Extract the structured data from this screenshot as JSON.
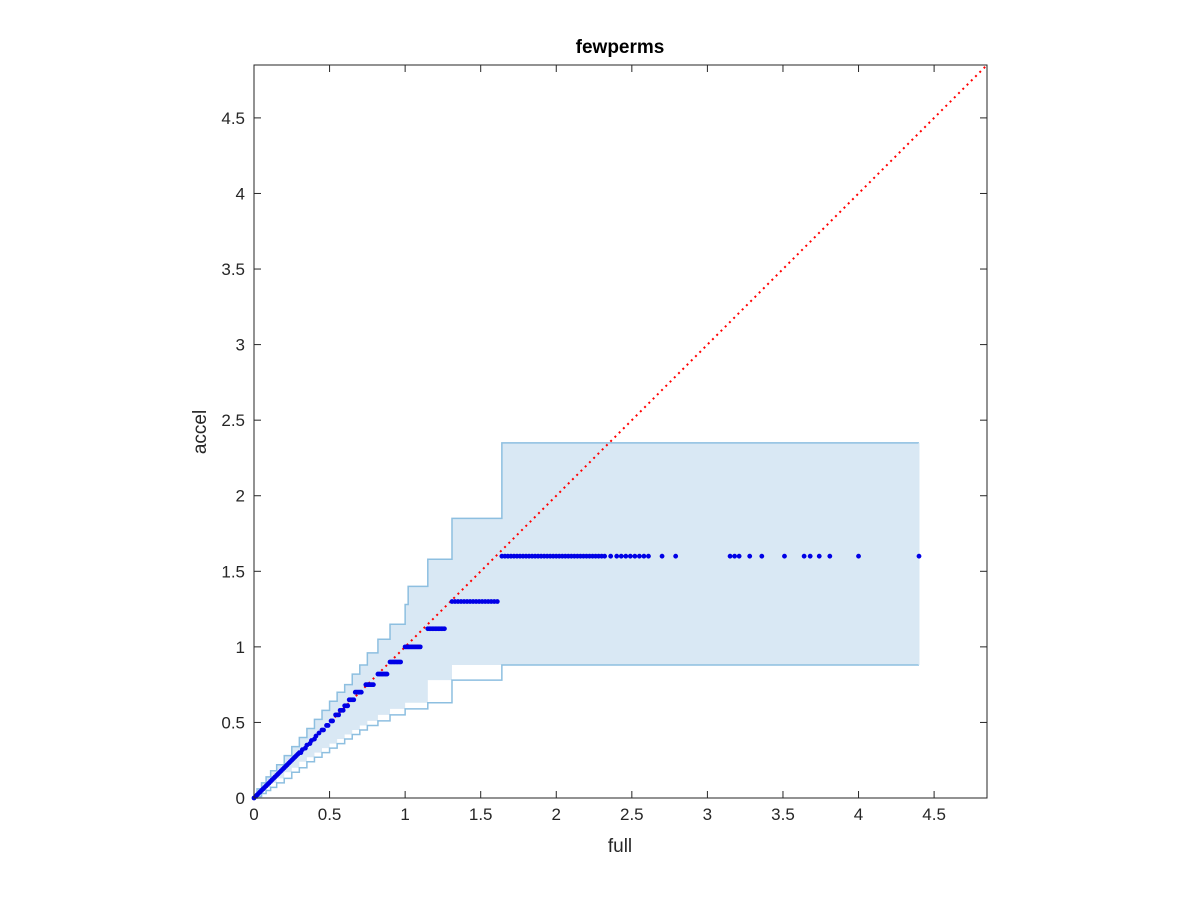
{
  "chart_data": {
    "type": "scatter",
    "title": "fewperms",
    "xlabel": "full",
    "ylabel": "accel",
    "xlim": [
      0,
      4.85
    ],
    "ylim": [
      0,
      4.85
    ],
    "xticks": [
      0,
      0.5,
      1,
      1.5,
      2,
      2.5,
      3,
      3.5,
      4,
      4.5
    ],
    "yticks": [
      0,
      0.5,
      1,
      1.5,
      2,
      2.5,
      3,
      3.5,
      4,
      4.5
    ],
    "xtick_labels": [
      "0",
      "0.5",
      "1",
      "1.5",
      "2",
      "2.5",
      "3",
      "3.5",
      "4",
      "4.5"
    ],
    "ytick_labels": [
      "0",
      "0.5",
      "1",
      "1.5",
      "2",
      "2.5",
      "3",
      "3.5",
      "4",
      "4.5"
    ],
    "grid": false,
    "colors": {
      "points": "#0000e6",
      "diagonal": "#ff0000",
      "band_fill": "#d9e8f4",
      "band_edge": "#8dbfe0",
      "axes": "#262626"
    },
    "diagonal": {
      "from": [
        0,
        0
      ],
      "to": [
        4.85,
        4.85
      ],
      "style": "dotted"
    },
    "confidence_band": {
      "upper": [
        [
          0.0,
          0.0
        ],
        [
          0.02,
          0.06
        ],
        [
          0.05,
          0.1
        ],
        [
          0.08,
          0.14
        ],
        [
          0.11,
          0.18
        ],
        [
          0.15,
          0.22
        ],
        [
          0.2,
          0.28
        ],
        [
          0.25,
          0.34
        ],
        [
          0.3,
          0.4
        ],
        [
          0.35,
          0.46
        ],
        [
          0.4,
          0.52
        ],
        [
          0.45,
          0.58
        ],
        [
          0.5,
          0.64
        ],
        [
          0.55,
          0.7
        ],
        [
          0.6,
          0.75
        ],
        [
          0.65,
          0.82
        ],
        [
          0.7,
          0.88
        ],
        [
          0.75,
          0.96
        ],
        [
          0.82,
          1.05
        ],
        [
          0.9,
          1.15
        ],
        [
          1.0,
          1.28
        ],
        [
          1.02,
          1.4
        ],
        [
          1.15,
          1.58
        ],
        [
          1.31,
          1.85
        ],
        [
          1.64,
          2.35
        ],
        [
          4.4,
          2.35
        ]
      ],
      "lower": [
        [
          0.0,
          0.0
        ],
        [
          0.02,
          0.01
        ],
        [
          0.05,
          0.03
        ],
        [
          0.08,
          0.05
        ],
        [
          0.11,
          0.07
        ],
        [
          0.15,
          0.1
        ],
        [
          0.2,
          0.13
        ],
        [
          0.25,
          0.17
        ],
        [
          0.3,
          0.2
        ],
        [
          0.35,
          0.24
        ],
        [
          0.4,
          0.27
        ],
        [
          0.45,
          0.3
        ],
        [
          0.5,
          0.33
        ],
        [
          0.55,
          0.36
        ],
        [
          0.6,
          0.39
        ],
        [
          0.65,
          0.42
        ],
        [
          0.7,
          0.45
        ],
        [
          0.75,
          0.48
        ],
        [
          0.82,
          0.51
        ],
        [
          0.9,
          0.55
        ],
        [
          1.0,
          0.59
        ],
        [
          1.15,
          0.63
        ],
        [
          1.31,
          0.78
        ],
        [
          1.64,
          0.88
        ],
        [
          4.4,
          0.88
        ]
      ]
    },
    "series": [
      {
        "points": [
          [
            0.0,
            0.0
          ],
          [
            0.01,
            0.01
          ],
          [
            0.02,
            0.02
          ],
          [
            0.03,
            0.03
          ],
          [
            0.04,
            0.04
          ],
          [
            0.05,
            0.05
          ],
          [
            0.06,
            0.06
          ],
          [
            0.07,
            0.07
          ],
          [
            0.08,
            0.08
          ],
          [
            0.09,
            0.09
          ],
          [
            0.1,
            0.1
          ],
          [
            0.11,
            0.11
          ],
          [
            0.12,
            0.12
          ],
          [
            0.13,
            0.13
          ],
          [
            0.14,
            0.14
          ],
          [
            0.15,
            0.15
          ],
          [
            0.16,
            0.16
          ],
          [
            0.17,
            0.17
          ],
          [
            0.18,
            0.18
          ],
          [
            0.19,
            0.19
          ],
          [
            0.2,
            0.2
          ],
          [
            0.21,
            0.21
          ],
          [
            0.22,
            0.22
          ],
          [
            0.23,
            0.23
          ],
          [
            0.24,
            0.24
          ],
          [
            0.25,
            0.25
          ],
          [
            0.26,
            0.26
          ],
          [
            0.27,
            0.27
          ],
          [
            0.28,
            0.28
          ],
          [
            0.29,
            0.29
          ],
          [
            0.3,
            0.3
          ],
          [
            0.31,
            0.3
          ],
          [
            0.32,
            0.32
          ],
          [
            0.34,
            0.33
          ],
          [
            0.35,
            0.35
          ],
          [
            0.37,
            0.36
          ],
          [
            0.38,
            0.38
          ],
          [
            0.4,
            0.39
          ],
          [
            0.41,
            0.41
          ],
          [
            0.43,
            0.43
          ],
          [
            0.45,
            0.45
          ],
          [
            0.46,
            0.45
          ],
          [
            0.48,
            0.48
          ],
          [
            0.49,
            0.48
          ],
          [
            0.51,
            0.51
          ],
          [
            0.52,
            0.51
          ],
          [
            0.54,
            0.55
          ],
          [
            0.55,
            0.55
          ],
          [
            0.56,
            0.55
          ],
          [
            0.57,
            0.58
          ],
          [
            0.58,
            0.58
          ],
          [
            0.59,
            0.58
          ],
          [
            0.6,
            0.61
          ],
          [
            0.61,
            0.61
          ],
          [
            0.62,
            0.61
          ],
          [
            0.63,
            0.65
          ],
          [
            0.64,
            0.65
          ],
          [
            0.65,
            0.65
          ],
          [
            0.66,
            0.65
          ],
          [
            0.67,
            0.7
          ],
          [
            0.68,
            0.7
          ],
          [
            0.69,
            0.7
          ],
          [
            0.7,
            0.7
          ],
          [
            0.71,
            0.7
          ],
          [
            0.74,
            0.75
          ],
          [
            0.75,
            0.75
          ],
          [
            0.76,
            0.75
          ],
          [
            0.77,
            0.75
          ],
          [
            0.78,
            0.75
          ],
          [
            0.79,
            0.75
          ],
          [
            0.82,
            0.82
          ],
          [
            0.83,
            0.82
          ],
          [
            0.84,
            0.82
          ],
          [
            0.85,
            0.82
          ],
          [
            0.86,
            0.82
          ],
          [
            0.87,
            0.82
          ],
          [
            0.88,
            0.82
          ],
          [
            0.9,
            0.9
          ],
          [
            0.91,
            0.9
          ],
          [
            0.92,
            0.9
          ],
          [
            0.93,
            0.9
          ],
          [
            0.94,
            0.9
          ],
          [
            0.95,
            0.9
          ],
          [
            0.96,
            0.9
          ],
          [
            0.97,
            0.9
          ],
          [
            1.0,
            1.0
          ],
          [
            1.01,
            1.0
          ],
          [
            1.02,
            1.0
          ],
          [
            1.03,
            1.0
          ],
          [
            1.04,
            1.0
          ],
          [
            1.05,
            1.0
          ],
          [
            1.06,
            1.0
          ],
          [
            1.07,
            1.0
          ],
          [
            1.08,
            1.0
          ],
          [
            1.09,
            1.0
          ],
          [
            1.1,
            1.0
          ],
          [
            1.15,
            1.12
          ],
          [
            1.16,
            1.12
          ],
          [
            1.17,
            1.12
          ],
          [
            1.18,
            1.12
          ],
          [
            1.19,
            1.12
          ],
          [
            1.2,
            1.12
          ],
          [
            1.21,
            1.12
          ],
          [
            1.22,
            1.12
          ],
          [
            1.23,
            1.12
          ],
          [
            1.24,
            1.12
          ],
          [
            1.25,
            1.12
          ],
          [
            1.26,
            1.12
          ],
          [
            1.31,
            1.3
          ],
          [
            1.33,
            1.3
          ],
          [
            1.35,
            1.3
          ],
          [
            1.37,
            1.3
          ],
          [
            1.39,
            1.3
          ],
          [
            1.41,
            1.3
          ],
          [
            1.43,
            1.3
          ],
          [
            1.45,
            1.3
          ],
          [
            1.47,
            1.3
          ],
          [
            1.49,
            1.3
          ],
          [
            1.51,
            1.3
          ],
          [
            1.53,
            1.3
          ],
          [
            1.55,
            1.3
          ],
          [
            1.57,
            1.3
          ],
          [
            1.59,
            1.3
          ],
          [
            1.61,
            1.3
          ],
          [
            1.64,
            1.6
          ],
          [
            1.66,
            1.6
          ],
          [
            1.68,
            1.6
          ],
          [
            1.7,
            1.6
          ],
          [
            1.72,
            1.6
          ],
          [
            1.74,
            1.6
          ],
          [
            1.76,
            1.6
          ],
          [
            1.78,
            1.6
          ],
          [
            1.8,
            1.6
          ],
          [
            1.82,
            1.6
          ],
          [
            1.84,
            1.6
          ],
          [
            1.86,
            1.6
          ],
          [
            1.88,
            1.6
          ],
          [
            1.9,
            1.6
          ],
          [
            1.92,
            1.6
          ],
          [
            1.94,
            1.6
          ],
          [
            1.96,
            1.6
          ],
          [
            1.98,
            1.6
          ],
          [
            2.0,
            1.6
          ],
          [
            2.02,
            1.6
          ],
          [
            2.04,
            1.6
          ],
          [
            2.06,
            1.6
          ],
          [
            2.08,
            1.6
          ],
          [
            2.1,
            1.6
          ],
          [
            2.12,
            1.6
          ],
          [
            2.14,
            1.6
          ],
          [
            2.16,
            1.6
          ],
          [
            2.18,
            1.6
          ],
          [
            2.2,
            1.6
          ],
          [
            2.22,
            1.6
          ],
          [
            2.24,
            1.6
          ],
          [
            2.26,
            1.6
          ],
          [
            2.28,
            1.6
          ],
          [
            2.3,
            1.6
          ],
          [
            2.32,
            1.6
          ],
          [
            2.36,
            1.6
          ],
          [
            2.4,
            1.6
          ],
          [
            2.43,
            1.6
          ],
          [
            2.46,
            1.6
          ],
          [
            2.49,
            1.6
          ],
          [
            2.52,
            1.6
          ],
          [
            2.55,
            1.6
          ],
          [
            2.58,
            1.6
          ],
          [
            2.61,
            1.6
          ],
          [
            2.7,
            1.6
          ],
          [
            2.79,
            1.6
          ],
          [
            3.15,
            1.6
          ],
          [
            3.18,
            1.6
          ],
          [
            3.21,
            1.6
          ],
          [
            3.28,
            1.6
          ],
          [
            3.36,
            1.6
          ],
          [
            3.51,
            1.6
          ],
          [
            3.64,
            1.6
          ],
          [
            3.68,
            1.6
          ],
          [
            3.74,
            1.6
          ],
          [
            3.81,
            1.6
          ],
          [
            4.0,
            1.6
          ],
          [
            4.4,
            1.6
          ]
        ]
      }
    ]
  }
}
